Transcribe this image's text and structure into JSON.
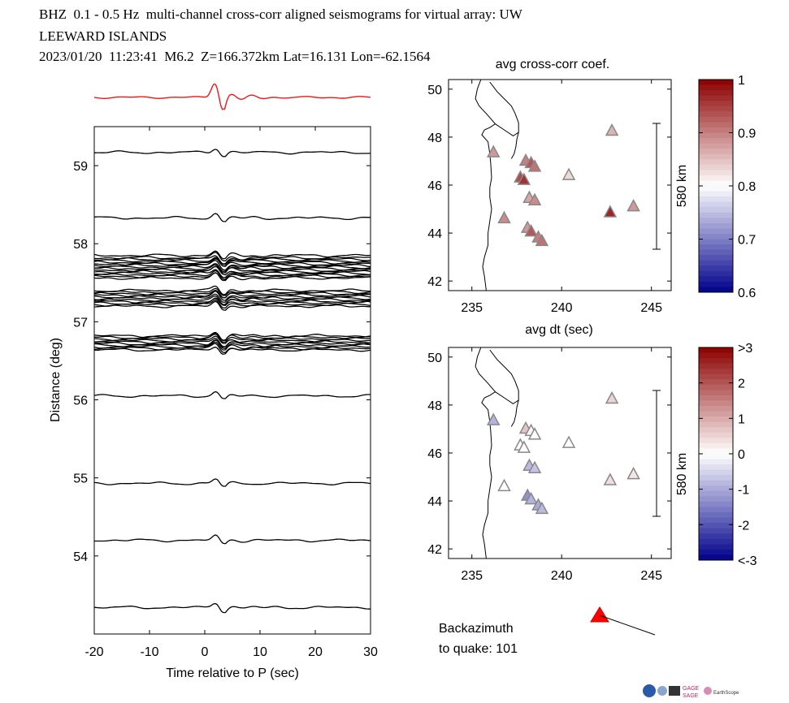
{
  "header": {
    "line1": "BHZ  0.1 - 0.5 Hz  multi-channel cross-corr aligned seismograms for virtual array: UW",
    "line2": "LEEWARD ISLANDS",
    "line3": "2023/01/20  11:23:41  M6.2  Z=166.372km Lat=16.131 Lon=-62.1564"
  },
  "chart_data": [
    {
      "type": "line",
      "name": "seismogram record section",
      "xlabel": "Time relative to P (sec)",
      "ylabel": "Distance (deg)",
      "xlim": [
        -20,
        30
      ],
      "ylim": [
        53.0,
        59.5
      ],
      "xticks": [
        -20,
        -10,
        0,
        10,
        20,
        30
      ],
      "yticks": [
        54,
        55,
        56,
        57,
        58,
        59
      ],
      "trace_distances": [
        59.17,
        58.33,
        57.85,
        57.82,
        57.8,
        57.78,
        57.76,
        57.74,
        57.72,
        57.7,
        57.68,
        57.66,
        57.64,
        57.62,
        57.6,
        57.58,
        57.56,
        57.4,
        57.38,
        57.36,
        57.34,
        57.32,
        57.3,
        57.28,
        57.26,
        57.24,
        57.22,
        57.2,
        56.82,
        56.8,
        56.78,
        56.76,
        56.74,
        56.72,
        56.7,
        56.68,
        56.66,
        56.64,
        56.05,
        54.93,
        54.2,
        53.34
      ],
      "stack_color": "#e8191a"
    },
    {
      "type": "scatter",
      "title": "avg cross-corr coef.",
      "xlim": [
        233.7,
        246.1
      ],
      "ylim": [
        41.6,
        50.4
      ],
      "xticks": [
        235,
        240,
        245
      ],
      "yticks": [
        42,
        44,
        46,
        48,
        50
      ],
      "scale_bar_label": "580 km",
      "colorbar": {
        "min": 0.6,
        "max": 1.0,
        "ticks": [
          "1",
          "0.9",
          "0.8",
          "0.7",
          "0.6"
        ]
      },
      "points": [
        {
          "lon": 236.2,
          "lat": 47.35,
          "value": 0.88
        },
        {
          "lon": 236.8,
          "lat": 44.6,
          "value": 0.89
        },
        {
          "lon": 237.7,
          "lat": 46.3,
          "value": 0.94
        },
        {
          "lon": 237.9,
          "lat": 46.2,
          "value": 0.96
        },
        {
          "lon": 238.0,
          "lat": 47.0,
          "value": 0.9
        },
        {
          "lon": 238.3,
          "lat": 46.9,
          "value": 0.93
        },
        {
          "lon": 238.5,
          "lat": 46.75,
          "value": 0.91
        },
        {
          "lon": 238.2,
          "lat": 45.45,
          "value": 0.87
        },
        {
          "lon": 238.5,
          "lat": 45.35,
          "value": 0.89
        },
        {
          "lon": 238.1,
          "lat": 44.2,
          "value": 0.88
        },
        {
          "lon": 238.3,
          "lat": 44.05,
          "value": 0.93
        },
        {
          "lon": 238.7,
          "lat": 43.8,
          "value": 0.9
        },
        {
          "lon": 238.9,
          "lat": 43.65,
          "value": 0.91
        },
        {
          "lon": 240.4,
          "lat": 46.4,
          "value": 0.83
        },
        {
          "lon": 242.8,
          "lat": 48.25,
          "value": 0.86
        },
        {
          "lon": 242.7,
          "lat": 44.85,
          "value": 0.97
        },
        {
          "lon": 244.0,
          "lat": 45.1,
          "value": 0.88
        }
      ]
    },
    {
      "type": "scatter",
      "title": "avg dt (sec)",
      "xlim": [
        233.7,
        246.1
      ],
      "ylim": [
        41.6,
        50.4
      ],
      "xticks": [
        235,
        240,
        245
      ],
      "yticks": [
        42,
        44,
        46,
        48,
        50
      ],
      "scale_bar_label": "580 km",
      "colorbar": {
        "min": -3,
        "max": 3,
        "ticks": [
          ">3",
          "2",
          "1",
          "0",
          "-1",
          "-2",
          "<-3"
        ]
      },
      "points": [
        {
          "lon": 236.2,
          "lat": 47.35,
          "value": -0.9
        },
        {
          "lon": 236.8,
          "lat": 44.6,
          "value": 0.0
        },
        {
          "lon": 237.7,
          "lat": 46.3,
          "value": 0.0
        },
        {
          "lon": 237.9,
          "lat": 46.2,
          "value": 0.0
        },
        {
          "lon": 238.0,
          "lat": 47.0,
          "value": 0.7
        },
        {
          "lon": 238.3,
          "lat": 46.9,
          "value": 0.1
        },
        {
          "lon": 238.5,
          "lat": 46.75,
          "value": 0.0
        },
        {
          "lon": 238.2,
          "lat": 45.45,
          "value": -0.8
        },
        {
          "lon": 238.5,
          "lat": 45.35,
          "value": -0.7
        },
        {
          "lon": 238.1,
          "lat": 44.2,
          "value": -1.3
        },
        {
          "lon": 238.3,
          "lat": 44.05,
          "value": -0.9
        },
        {
          "lon": 238.7,
          "lat": 43.8,
          "value": -1.0
        },
        {
          "lon": 238.9,
          "lat": 43.65,
          "value": -0.8
        },
        {
          "lon": 240.4,
          "lat": 46.4,
          "value": 0.0
        },
        {
          "lon": 242.8,
          "lat": 48.25,
          "value": 0.5
        },
        {
          "lon": 242.7,
          "lat": 44.85,
          "value": 0.4
        },
        {
          "lon": 244.0,
          "lat": 45.1,
          "value": 0.3
        }
      ]
    }
  ],
  "backazimuth": {
    "label_line1": "Backazimuth",
    "label_line2": "to quake:  101",
    "value_deg": 101
  },
  "logos": {
    "gage": "GAGE",
    "sage": "SAGE",
    "earthscope": "EarthScope"
  }
}
